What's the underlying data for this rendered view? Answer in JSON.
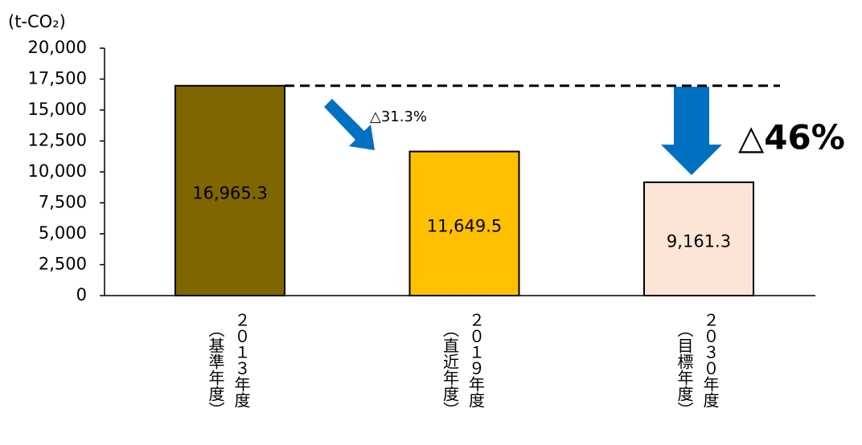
{
  "chart_data": {
    "type": "bar",
    "unit_label": "(t-CO₂)",
    "categories": [
      "２０１３年度",
      "２０１９年度",
      "２０３０年度"
    ],
    "category_notes": [
      "（基準年度）",
      "（直近年度）",
      "（目標年度）"
    ],
    "values": [
      16965.3,
      11649.5,
      9161.3
    ],
    "value_labels": [
      "16,965.3",
      "11,649.5",
      "9,161.3"
    ],
    "colors": [
      "#806600",
      "#ffc000",
      "#fce4d6"
    ],
    "label_colors": [
      "#ffffff",
      "#000000",
      "#000000"
    ],
    "ylim": [
      0,
      20000
    ],
    "yticks": [
      0,
      {
        "value": 2500,
        "label": "2,500"
      },
      {
        "value": 5000,
        "label": "5,000"
      },
      {
        "value": 7500,
        "label": "7,500"
      },
      {
        "value": 10000,
        "label": "10,000"
      },
      {
        "value": 12500,
        "label": "12,500"
      },
      {
        "value": 15000,
        "label": "15,000"
      },
      {
        "value": 17500,
        "label": "17,500"
      },
      {
        "value": 20000,
        "label": "20,000"
      }
    ],
    "annotations": [
      "△31.3%",
      "△46%"
    ],
    "grid": false
  }
}
